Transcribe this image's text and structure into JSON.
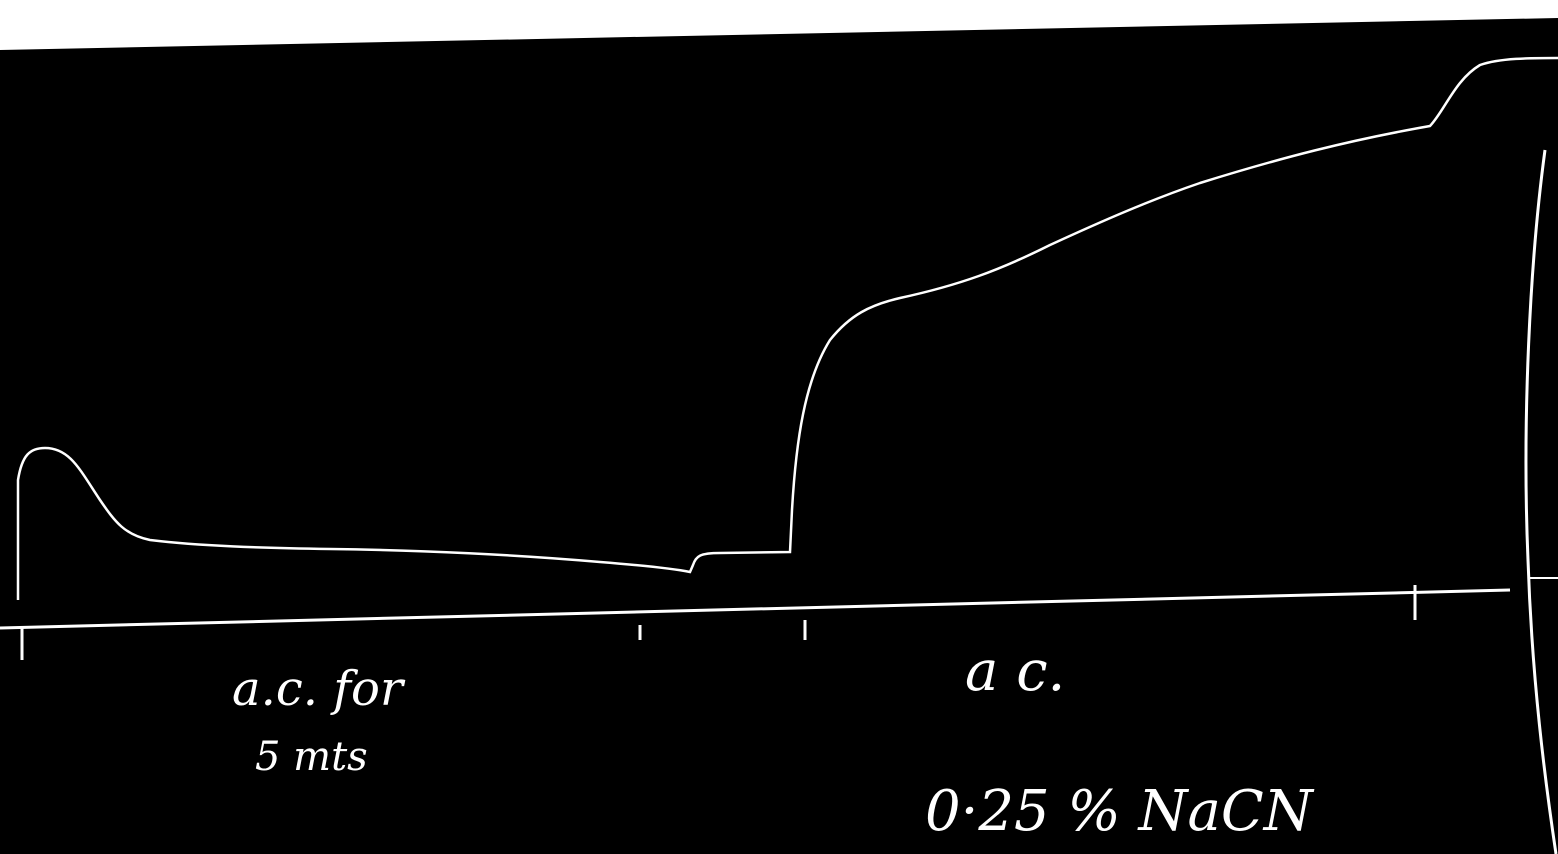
{
  "annotations": {
    "left_line1": "a.c. for",
    "left_line2": "5 mts",
    "right_line1": "a c.",
    "right_line2": "0·25 % NaCN"
  }
}
